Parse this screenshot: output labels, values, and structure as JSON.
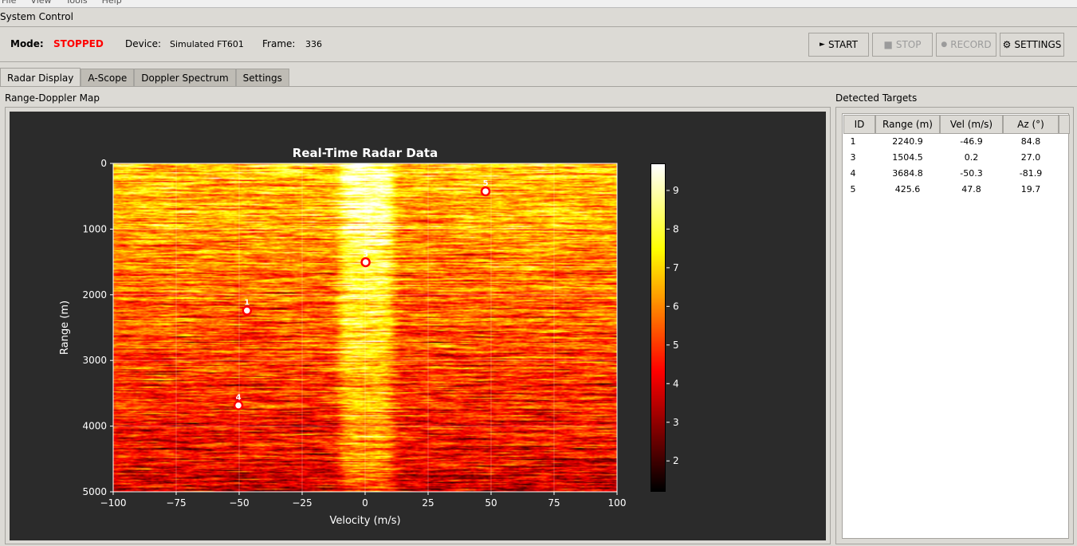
{
  "menu": [
    "File",
    "View",
    "Tools",
    "Help"
  ],
  "system_control": {
    "title": "System Control",
    "mode_label": "Mode:",
    "mode_value": "STOPPED",
    "device_label": "Device:",
    "device_value": "Simulated FT601",
    "frame_label": "Frame:",
    "frame_value": "336"
  },
  "buttons": {
    "start": "START",
    "stop": "STOP",
    "record": "RECORD",
    "settings": "SETTINGS"
  },
  "tabs": [
    "Radar Display",
    "A-Scope",
    "Doppler Spectrum",
    "Settings"
  ],
  "range_doppler": {
    "title": "Range-Doppler Map"
  },
  "targets_panel": {
    "title": "Detected Targets",
    "columns": [
      "ID",
      "Range (m)",
      "Vel (m/s)",
      "Az (°)"
    ],
    "rows": [
      [
        "1",
        "2240.9",
        "-46.9",
        "84.8"
      ],
      [
        "3",
        "1504.5",
        "0.2",
        "27.0"
      ],
      [
        "4",
        "3684.8",
        "-50.3",
        "-81.9"
      ],
      [
        "5",
        "425.6",
        "47.8",
        "19.7"
      ]
    ]
  },
  "colors": {
    "mode_stopped": "#ff0000",
    "plot_bg": "#2b2b2b",
    "marker": "#ff0000"
  },
  "chart_data": {
    "type": "heatmap",
    "title": "Real-Time Radar Data",
    "xlabel": "Velocity (m/s)",
    "ylabel": "Range (m)",
    "xlim": [
      -100,
      100
    ],
    "ylim": [
      5000,
      0
    ],
    "xticks": [
      "−100",
      "−75",
      "−50",
      "−25",
      "0",
      "25",
      "50",
      "75",
      "100"
    ],
    "yticks": [
      "0",
      "1000",
      "2000",
      "3000",
      "4000",
      "5000"
    ],
    "colormap": "hot",
    "colorbar_range": [
      1.2,
      9.7
    ],
    "colorbar_ticks": [
      "2",
      "3",
      "4",
      "5",
      "6",
      "7",
      "8",
      "9"
    ],
    "targets": [
      {
        "id": "1",
        "range": 2240.9,
        "velocity": -46.9
      },
      {
        "id": "3",
        "range": 1504.5,
        "velocity": 0.2
      },
      {
        "id": "4",
        "range": 3684.8,
        "velocity": -50.3
      },
      {
        "id": "5",
        "range": 425.6,
        "velocity": 47.8
      }
    ]
  }
}
